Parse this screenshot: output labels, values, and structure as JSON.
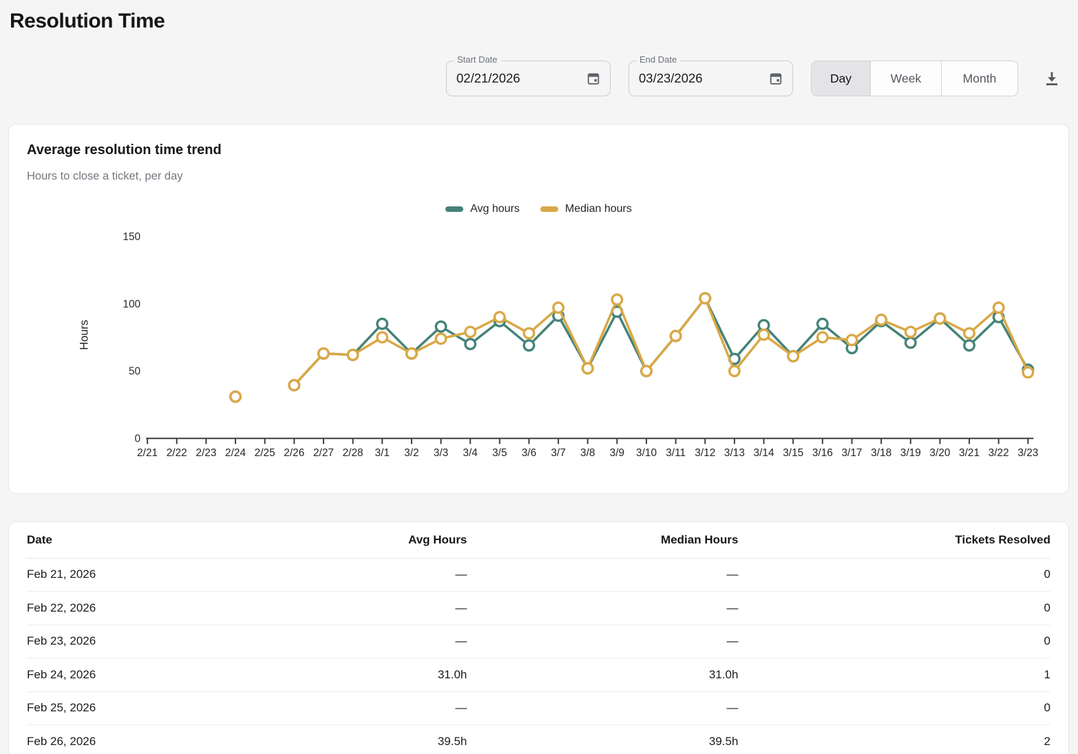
{
  "page": {
    "title": "Resolution Time"
  },
  "filters": {
    "start_date": {
      "label": "Start Date",
      "value": "02/21/2026"
    },
    "end_date": {
      "label": "End Date",
      "value": "03/23/2026"
    },
    "granularity": {
      "options": [
        "Day",
        "Week",
        "Month"
      ],
      "selected": "Day"
    }
  },
  "chart_card": {
    "title": "Average resolution time trend",
    "subtitle": "Hours to close a ticket, per day"
  },
  "chart_data": {
    "type": "line",
    "title": "Average resolution time trend",
    "subtitle": "Hours to close a ticket, per day",
    "ylabel": "Hours",
    "yticks": [
      0,
      50,
      100,
      150
    ],
    "ylim": [
      0,
      150
    ],
    "grid": false,
    "legend_position": "top-center",
    "marker": "open-circle",
    "x": [
      "2/21",
      "2/22",
      "2/23",
      "2/24",
      "2/25",
      "2/26",
      "2/27",
      "2/28",
      "3/1",
      "3/2",
      "3/3",
      "3/4",
      "3/5",
      "3/6",
      "3/7",
      "3/8",
      "3/9",
      "3/10",
      "3/11",
      "3/12",
      "3/13",
      "3/14",
      "3/15",
      "3/16",
      "3/17",
      "3/18",
      "3/19",
      "3/20",
      "3/21",
      "3/22",
      "3/23"
    ],
    "series": [
      {
        "name": "Avg hours",
        "color": "#45837A",
        "values": [
          null,
          null,
          null,
          31,
          null,
          39.5,
          63,
          62,
          85,
          63,
          83,
          70,
          87,
          69,
          91,
          52,
          94,
          50,
          76,
          104,
          59,
          84,
          61,
          85,
          67,
          87,
          71,
          89,
          69,
          90,
          51
        ]
      },
      {
        "name": "Median hours",
        "color": "#D9A845",
        "values": [
          null,
          null,
          null,
          31,
          null,
          39.5,
          63,
          62,
          75,
          63,
          74,
          79,
          90,
          78,
          97,
          52,
          103,
          50,
          76,
          104,
          50,
          77,
          61,
          75,
          73,
          88,
          79,
          89,
          78,
          97,
          49
        ]
      }
    ]
  },
  "table": {
    "columns": [
      "Date",
      "Avg Hours",
      "Median Hours",
      "Tickets Resolved"
    ],
    "rows": [
      {
        "date": "Feb 21, 2026",
        "avg": "—",
        "median": "—",
        "tickets": "0"
      },
      {
        "date": "Feb 22, 2026",
        "avg": "—",
        "median": "—",
        "tickets": "0"
      },
      {
        "date": "Feb 23, 2026",
        "avg": "—",
        "median": "—",
        "tickets": "0"
      },
      {
        "date": "Feb 24, 2026",
        "avg": "31.0h",
        "median": "31.0h",
        "tickets": "1"
      },
      {
        "date": "Feb 25, 2026",
        "avg": "—",
        "median": "—",
        "tickets": "0"
      },
      {
        "date": "Feb 26, 2026",
        "avg": "39.5h",
        "median": "39.5h",
        "tickets": "2"
      }
    ]
  }
}
